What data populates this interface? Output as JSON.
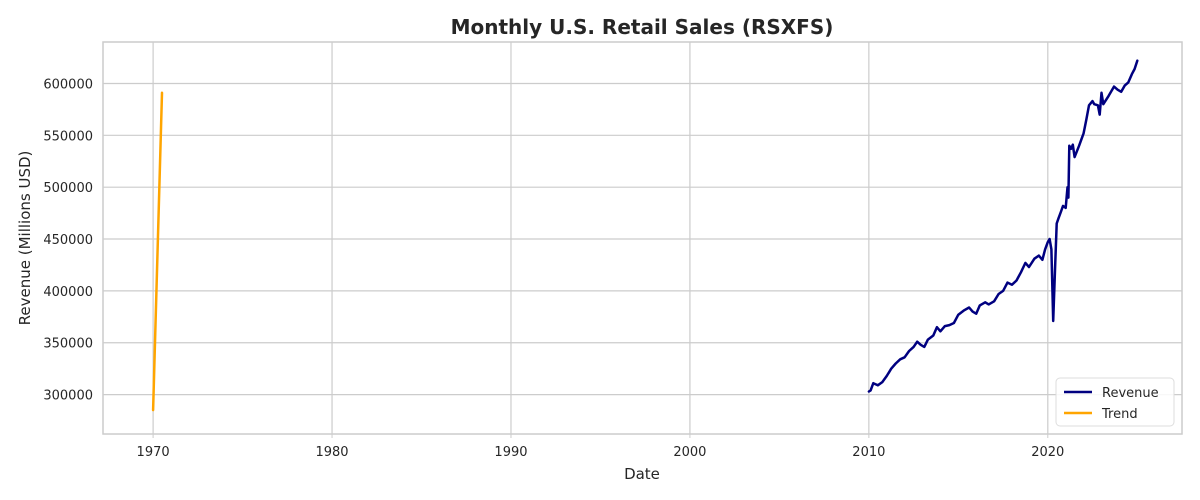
{
  "chart_data": {
    "type": "line",
    "title": "Monthly U.S. Retail Sales (RSXFS)",
    "xlabel": "Date",
    "ylabel": "Revenue (Millions USD)",
    "xlim": [
      1967.2,
      2027.5
    ],
    "ylim": [
      262000,
      640000
    ],
    "x_ticks": [
      1970,
      1980,
      1990,
      2000,
      2010,
      2020
    ],
    "y_ticks": [
      300000,
      350000,
      400000,
      450000,
      500000,
      550000,
      600000
    ],
    "x_tick_labels": [
      "1970",
      "1980",
      "1990",
      "2000",
      "2010",
      "2020"
    ],
    "y_tick_labels": [
      "300000",
      "350000",
      "400000",
      "450000",
      "500000",
      "550000",
      "600000"
    ],
    "grid": true,
    "legend_position": "bottom-right",
    "series": [
      {
        "name": "Revenue",
        "color": "#000080",
        "points": [
          [
            2010.0,
            303000
          ],
          [
            2010.1,
            304000
          ],
          [
            2010.25,
            311000
          ],
          [
            2010.5,
            309000
          ],
          [
            2010.75,
            312000
          ],
          [
            2011.0,
            318000
          ],
          [
            2011.25,
            325000
          ],
          [
            2011.5,
            330000
          ],
          [
            2011.75,
            334000
          ],
          [
            2012.0,
            336000
          ],
          [
            2012.25,
            342000
          ],
          [
            2012.5,
            346000
          ],
          [
            2012.7,
            351000
          ],
          [
            2012.9,
            348000
          ],
          [
            2013.1,
            346000
          ],
          [
            2013.3,
            353000
          ],
          [
            2013.6,
            357000
          ],
          [
            2013.8,
            365000
          ],
          [
            2014.0,
            361000
          ],
          [
            2014.25,
            366000
          ],
          [
            2014.5,
            367000
          ],
          [
            2014.75,
            369000
          ],
          [
            2015.0,
            377000
          ],
          [
            2015.3,
            381000
          ],
          [
            2015.6,
            384000
          ],
          [
            2015.8,
            380000
          ],
          [
            2016.0,
            378000
          ],
          [
            2016.2,
            386000
          ],
          [
            2016.5,
            389000
          ],
          [
            2016.7,
            387000
          ],
          [
            2017.0,
            390000
          ],
          [
            2017.25,
            397000
          ],
          [
            2017.5,
            400000
          ],
          [
            2017.75,
            408000
          ],
          [
            2018.0,
            406000
          ],
          [
            2018.25,
            410000
          ],
          [
            2018.5,
            418000
          ],
          [
            2018.75,
            427000
          ],
          [
            2018.95,
            423000
          ],
          [
            2019.25,
            431000
          ],
          [
            2019.5,
            434000
          ],
          [
            2019.7,
            430000
          ],
          [
            2019.85,
            440000
          ],
          [
            2020.0,
            447000
          ],
          [
            2020.1,
            450000
          ],
          [
            2020.2,
            440000
          ],
          [
            2020.3,
            371000
          ],
          [
            2020.4,
            420000
          ],
          [
            2020.5,
            465000
          ],
          [
            2020.6,
            470000
          ],
          [
            2020.75,
            477000
          ],
          [
            2020.85,
            482000
          ],
          [
            2021.0,
            480000
          ],
          [
            2021.1,
            500000
          ],
          [
            2021.15,
            490000
          ],
          [
            2021.2,
            540000
          ],
          [
            2021.3,
            537000
          ],
          [
            2021.4,
            541000
          ],
          [
            2021.5,
            529000
          ],
          [
            2021.75,
            540000
          ],
          [
            2022.0,
            552000
          ],
          [
            2022.15,
            565000
          ],
          [
            2022.3,
            579000
          ],
          [
            2022.5,
            583000
          ],
          [
            2022.6,
            580000
          ],
          [
            2022.8,
            579000
          ],
          [
            2022.9,
            570000
          ],
          [
            2023.0,
            591000
          ],
          [
            2023.1,
            580000
          ],
          [
            2023.4,
            588000
          ],
          [
            2023.7,
            597000
          ],
          [
            2023.9,
            594000
          ],
          [
            2024.1,
            592000
          ],
          [
            2024.3,
            598000
          ],
          [
            2024.5,
            601000
          ],
          [
            2024.7,
            609000
          ],
          [
            2024.85,
            614000
          ],
          [
            2025.0,
            622000
          ]
        ]
      },
      {
        "name": "Trend",
        "color": "#FFA500",
        "points": [
          [
            1970.0,
            285000
          ],
          [
            1970.5,
            591000
          ]
        ]
      }
    ]
  }
}
